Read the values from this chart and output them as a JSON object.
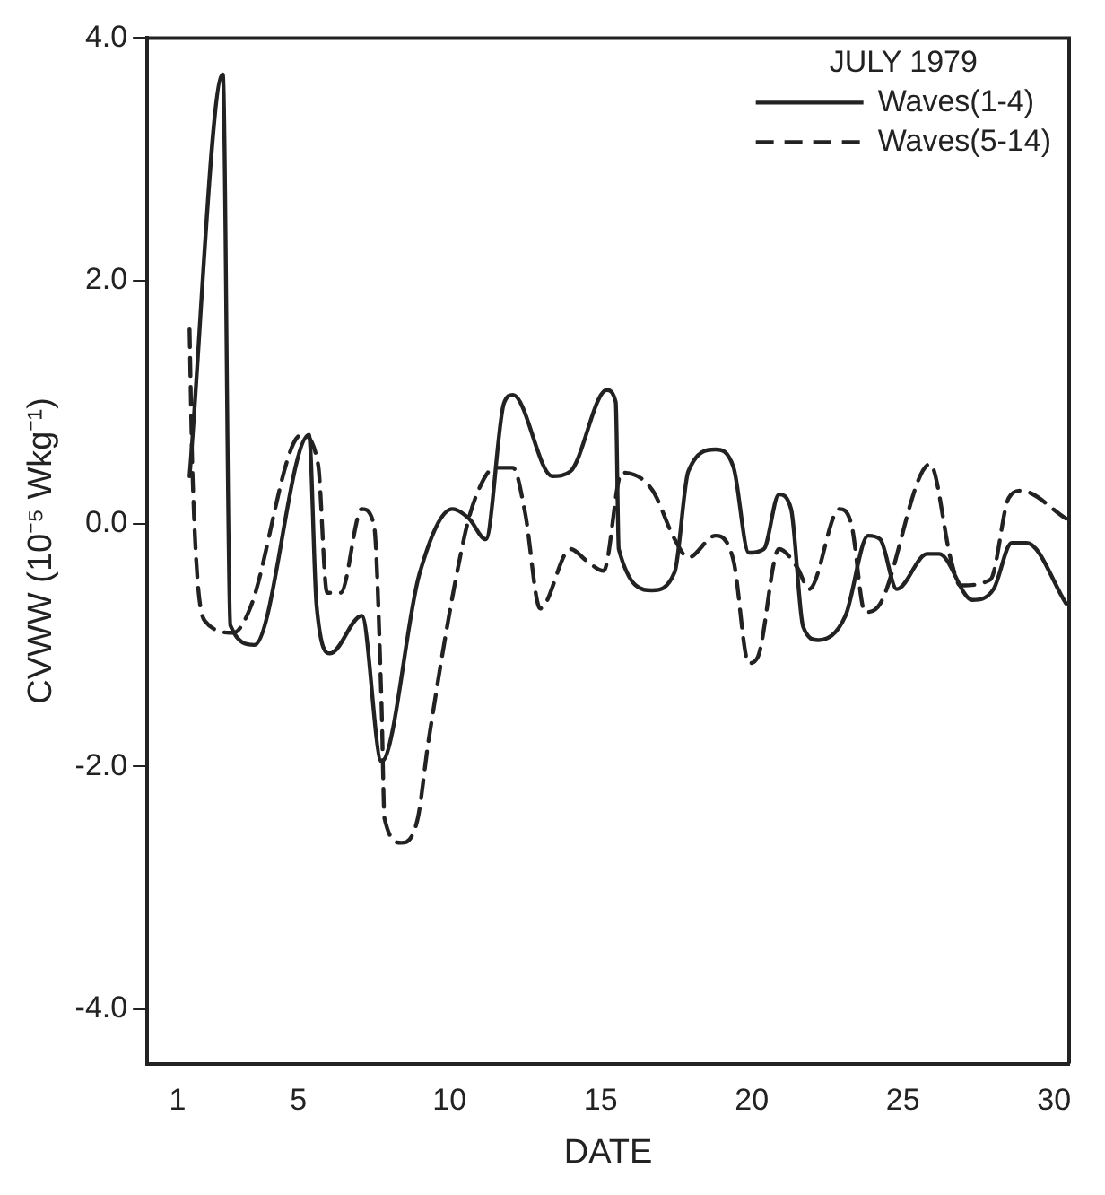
{
  "chart_data": {
    "type": "line",
    "xlabel": "DATE",
    "ylabel": "CVWW (10⁻⁵ Wkg⁻¹)",
    "legend_title": "JULY 1979",
    "legend": "top right",
    "grid": false,
    "marker": "none",
    "xlim": [
      0,
      30.5
    ],
    "xticks": [
      1,
      5,
      10,
      15,
      20,
      25,
      30
    ],
    "ylim": [
      -4.45,
      4.0
    ],
    "yticks": [
      {
        "value": 4,
        "label": "4.0"
      },
      {
        "value": 2,
        "label": "2.0"
      },
      {
        "value": 0,
        "label": "0.0"
      },
      {
        "value": -2,
        "label": "-2.0"
      },
      {
        "value": -4,
        "label": "-4.0"
      }
    ],
    "series": [
      {
        "name": "Waves(1-4)",
        "color": "#222222",
        "line_style": "solid",
        "x": [
          1.4,
          2.5,
          2.75,
          3.55,
          5.35,
          5.6,
          6.05,
          7.1,
          7.75,
          9.0,
          10.1,
          10.65,
          11.2,
          11.8,
          12.1,
          13.4,
          14.0,
          15.2,
          15.5,
          15.6,
          16.7,
          17.45,
          17.9,
          18.8,
          19.4,
          19.9,
          20.4,
          20.9,
          21.3,
          21.7,
          22.2,
          23.1,
          23.85,
          24.25,
          24.8,
          25.8,
          26.2,
          27.3,
          28.0,
          28.6,
          29.1,
          30.4
        ],
        "values": [
          0.39,
          3.7,
          -0.84,
          -1.0,
          0.73,
          -0.67,
          -1.07,
          -0.76,
          -1.96,
          -0.42,
          0.12,
          0.04,
          -0.13,
          0.99,
          1.06,
          0.39,
          0.43,
          1.1,
          1.0,
          -0.21,
          -0.55,
          -0.4,
          0.43,
          0.61,
          0.46,
          -0.24,
          -0.21,
          0.24,
          0.12,
          -0.85,
          -0.96,
          -0.76,
          -0.1,
          -0.13,
          -0.54,
          -0.25,
          -0.25,
          -0.63,
          -0.54,
          -0.16,
          -0.16,
          -0.66
        ]
      },
      {
        "name": "Waves(5-14)",
        "color": "#222222",
        "line_style": "dashed",
        "x": [
          1.4,
          1.5,
          1.9,
          2.85,
          3.4,
          5.1,
          5.65,
          5.95,
          6.4,
          7.1,
          7.5,
          7.75,
          7.85,
          8.4,
          8.95,
          9.3,
          10.5,
          10.9,
          11.5,
          12.1,
          12.5,
          13.0,
          14.0,
          14.55,
          15.1,
          15.7,
          16.7,
          17.45,
          17.9,
          18.8,
          19.4,
          19.9,
          20.2,
          20.9,
          21.5,
          21.9,
          22.9,
          23.3,
          23.75,
          24.25,
          25.9,
          26.6,
          26.9,
          27.9,
          28.5,
          28.9,
          30.4
        ],
        "values": [
          1.6,
          0.39,
          -0.8,
          -0.9,
          -0.7,
          0.73,
          0.49,
          -0.57,
          -0.57,
          0.12,
          -0.01,
          -1.48,
          -2.43,
          -2.63,
          -2.43,
          -1.8,
          -0.1,
          0.24,
          0.46,
          0.46,
          0.09,
          -0.7,
          -0.21,
          -0.31,
          -0.39,
          0.42,
          0.28,
          -0.13,
          -0.28,
          -0.1,
          -0.31,
          -1.15,
          -1.1,
          -0.21,
          -0.36,
          -0.54,
          0.12,
          -0.01,
          -0.73,
          -0.66,
          0.49,
          -0.31,
          -0.51,
          -0.46,
          0.21,
          0.27,
          0.04
        ]
      }
    ]
  }
}
